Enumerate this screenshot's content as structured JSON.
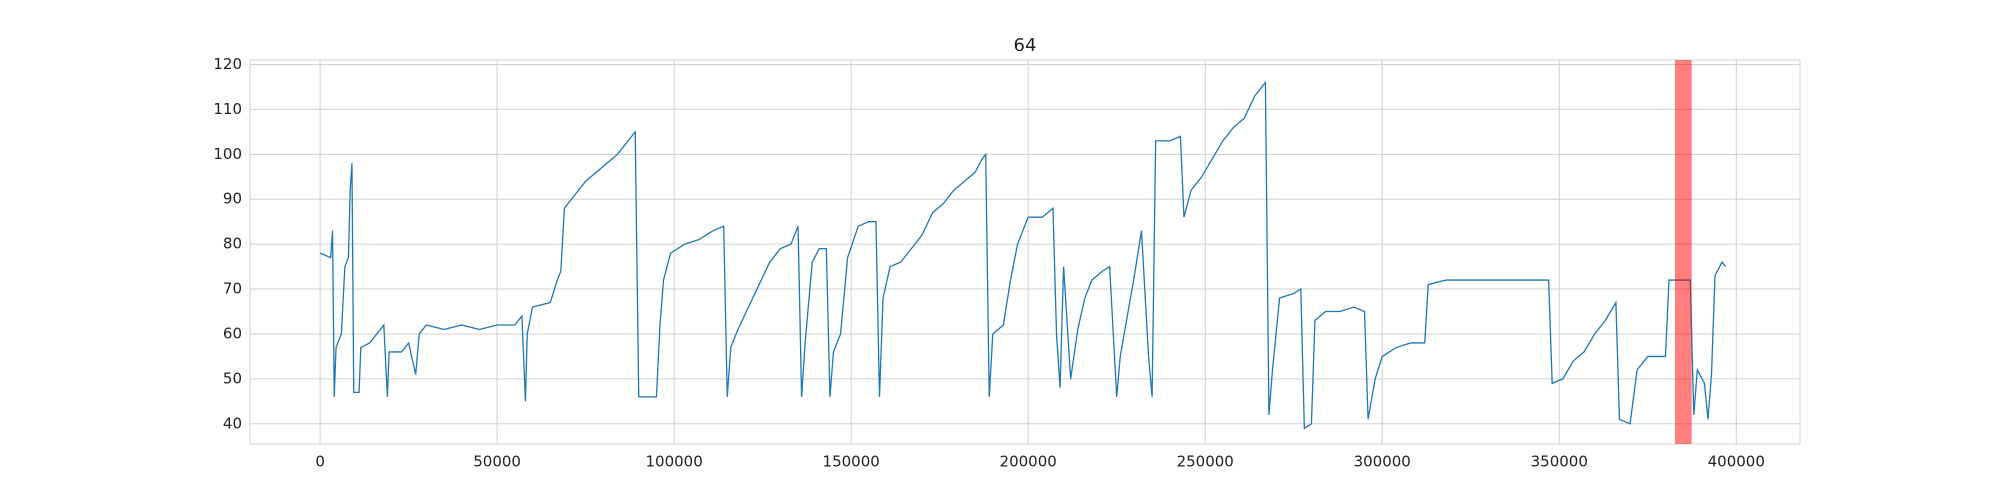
{
  "chart_data": {
    "type": "line",
    "title": "64",
    "x": [
      0,
      3000,
      3500,
      4000,
      4500,
      6000,
      7000,
      8000,
      8500,
      9000,
      9500,
      11000,
      11500,
      14000,
      16000,
      18000,
      19000,
      19500,
      23000,
      25000,
      27000,
      28000,
      30000,
      35000,
      40000,
      45000,
      50000,
      55000,
      57000,
      58000,
      58500,
      60000,
      65000,
      67000,
      68000,
      69000,
      72000,
      75000,
      78000,
      81000,
      84000,
      87000,
      89000,
      90000,
      92000,
      95000,
      96000,
      97000,
      99000,
      103000,
      107000,
      111000,
      114000,
      115000,
      116000,
      118000,
      121000,
      124000,
      127000,
      130000,
      133000,
      135000,
      136000,
      137000,
      139000,
      141000,
      143000,
      144000,
      145000,
      147000,
      149000,
      152000,
      155000,
      157000,
      158000,
      159000,
      161000,
      164000,
      167000,
      170000,
      173000,
      176000,
      179000,
      182000,
      185000,
      187000,
      188000,
      189000,
      190000,
      193000,
      195000,
      197000,
      200000,
      204000,
      207000,
      208000,
      209000,
      210000,
      212000,
      214000,
      216000,
      218000,
      221000,
      223000,
      225000,
      226000,
      228000,
      230000,
      232000,
      234000,
      235000,
      236000,
      240000,
      243000,
      244000,
      246000,
      249000,
      252000,
      255000,
      258000,
      261000,
      264000,
      266000,
      267000,
      268000,
      269000,
      271000,
      275000,
      277000,
      278000,
      280000,
      281000,
      284000,
      288000,
      292000,
      295000,
      296000,
      298000,
      300000,
      304000,
      308000,
      312000,
      313000,
      318000,
      323000,
      328000,
      333000,
      338000,
      343000,
      347000,
      348000,
      351000,
      354000,
      357000,
      360000,
      363000,
      366000,
      367000,
      370000,
      372000,
      375000,
      378000,
      380000,
      381000,
      384000,
      387000,
      388000,
      389000,
      391000,
      392000,
      393000,
      394000,
      396000,
      397000
    ],
    "series": [
      {
        "color": "#1f77b4",
        "values": [
          78,
          77,
          83,
          46,
          57,
          60,
          75,
          77,
          92,
          98,
          47,
          47,
          57,
          58,
          60,
          62,
          46,
          56,
          56,
          58,
          51,
          60,
          62,
          61,
          62,
          61,
          62,
          62,
          64,
          45,
          60,
          66,
          67,
          72,
          74,
          88,
          91,
          94,
          96,
          98,
          100,
          103,
          105,
          46,
          46,
          46,
          62,
          72,
          78,
          80,
          81,
          83,
          84,
          46,
          57,
          61,
          66,
          71,
          76,
          79,
          80,
          84,
          46,
          58,
          76,
          79,
          79,
          46,
          56,
          60,
          77,
          84,
          85,
          85,
          46,
          68,
          75,
          76,
          79,
          82,
          87,
          89,
          92,
          94,
          96,
          99,
          100,
          46,
          60,
          62,
          72,
          80,
          86,
          86,
          88,
          60,
          48,
          75,
          50,
          61,
          68,
          72,
          74,
          75,
          46,
          55,
          64,
          73,
          83,
          55,
          46,
          103,
          103,
          104,
          86,
          92,
          95,
          99,
          103,
          106,
          108,
          113,
          115,
          116,
          42,
          52,
          68,
          69,
          70,
          39,
          40,
          63,
          65,
          65,
          66,
          65,
          41,
          50,
          55,
          57,
          58,
          58,
          71,
          72,
          72,
          72,
          72,
          72,
          72,
          72,
          49,
          50,
          54,
          56,
          60,
          63,
          67,
          41,
          40,
          52,
          55,
          55,
          55,
          72,
          72,
          72,
          42,
          52,
          49,
          41,
          51,
          73,
          76,
          75
        ]
      }
    ],
    "highlight": {
      "xmin": 382700,
      "xmax": 387400,
      "color": "#ff0000"
    },
    "xlim": [
      -19800,
      418000
    ],
    "ylim": [
      35.5,
      121
    ],
    "xticks": [
      0,
      50000,
      100000,
      150000,
      200000,
      250000,
      300000,
      350000,
      400000
    ],
    "yticks": [
      40,
      50,
      60,
      70,
      80,
      90,
      100,
      110,
      120
    ],
    "grid": true
  }
}
